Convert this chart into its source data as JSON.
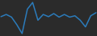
{
  "y_values": [
    0.3,
    0.8,
    0.2,
    -1.5,
    -3.5,
    2.0,
    3.5,
    -0.5,
    0.8,
    0.3,
    1.0,
    0.2,
    0.8,
    0.2,
    0.5,
    -0.5,
    -2.0,
    0.5,
    1.2
  ],
  "line_color": "#2b7bba",
  "bg_color": "#2b2b2b",
  "linewidth": 1.1
}
